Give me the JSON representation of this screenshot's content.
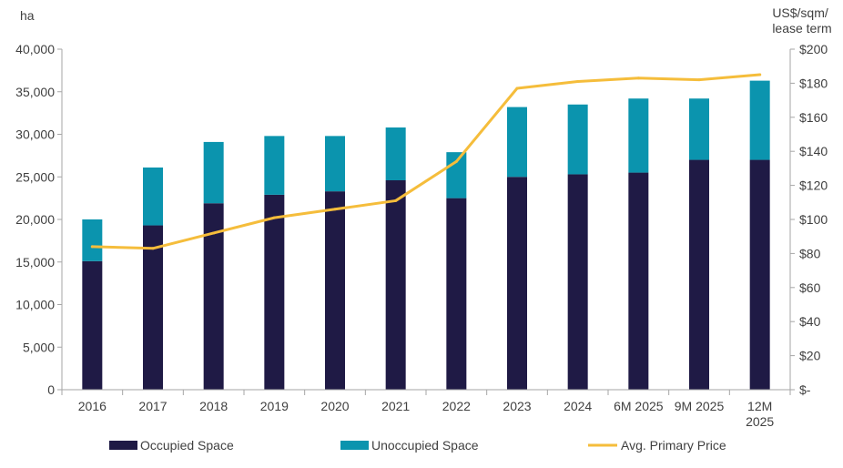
{
  "chart_data": {
    "type": "bar",
    "stacked": true,
    "categories": [
      "2016",
      "2017",
      "2018",
      "2019",
      "2020",
      "2021",
      "2022",
      "2023",
      "2024",
      "6M 2025",
      "9M 2025",
      "12M 2025"
    ],
    "series": [
      {
        "name": "Occupied Space",
        "axis": "left",
        "type": "bar",
        "values": [
          15100,
          19300,
          21900,
          22900,
          23300,
          24600,
          22500,
          25000,
          25300,
          25500,
          27000,
          27000
        ],
        "color": "#1f1a45"
      },
      {
        "name": "Unoccupied Space",
        "axis": "left",
        "type": "bar",
        "values": [
          4900,
          6800,
          7200,
          6900,
          6500,
          6200,
          5400,
          8200,
          8200,
          8700,
          7200,
          9300
        ],
        "color": "#0b94ae"
      },
      {
        "name": "Avg. Primary Price",
        "axis": "right",
        "type": "line",
        "values": [
          84,
          83,
          92,
          101,
          106,
          111,
          134,
          177,
          181,
          183,
          182,
          185
        ],
        "color": "#f5bd3b"
      }
    ],
    "y_left": {
      "label": "ha",
      "min": 0,
      "max": 40000,
      "step": 5000,
      "ticks": [
        "0",
        "5,000",
        "10,000",
        "15,000",
        "20,000",
        "25,000",
        "30,000",
        "35,000",
        "40,000"
      ]
    },
    "y_right": {
      "label_lines": [
        "US$/sqm/",
        "lease term"
      ],
      "min": 0,
      "max": 200,
      "step": 20,
      "ticks": [
        "$-",
        "$20",
        "$40",
        "$60",
        "$80",
        "$100",
        "$120",
        "$140",
        "$160",
        "$180",
        "$200"
      ]
    },
    "x_tick_labels": [
      [
        "2016"
      ],
      [
        "2017"
      ],
      [
        "2018"
      ],
      [
        "2019"
      ],
      [
        "2020"
      ],
      [
        "2021"
      ],
      [
        "2022"
      ],
      [
        "2023"
      ],
      [
        "2024"
      ],
      [
        "6M 2025"
      ],
      [
        "9M 2025"
      ],
      [
        "12M",
        "2025"
      ]
    ],
    "legend": {
      "position": "bottom",
      "items": [
        "Occupied Space",
        "Unoccupied Space",
        "Avg. Primary Price"
      ]
    },
    "grid": false
  }
}
